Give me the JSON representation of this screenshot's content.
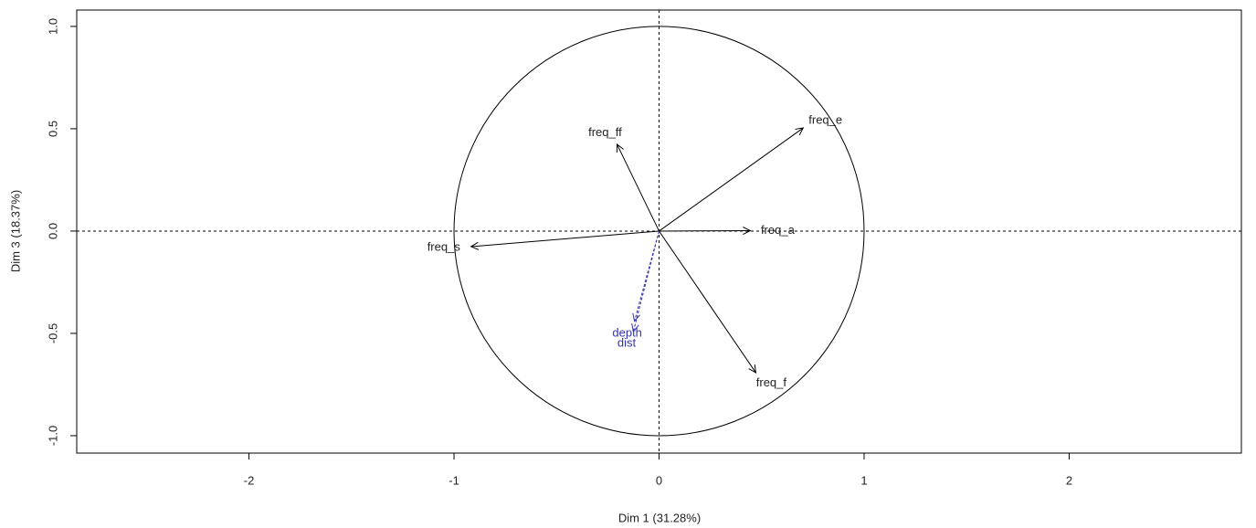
{
  "chart_data": {
    "type": "vector",
    "xlabel": "Dim 1 (31.28%)",
    "ylabel": "Dim 3 (18.37%)",
    "xlim": [
      -2.84,
      2.84
    ],
    "ylim": [
      -1.085,
      1.08
    ],
    "xticks": [
      -2,
      -1,
      0,
      1,
      2
    ],
    "yticks": [
      {
        "value": -1,
        "label": "-1.0"
      },
      {
        "value": -0.5,
        "label": "-0.5"
      },
      {
        "value": 0,
        "label": "0.0"
      },
      {
        "value": 0.5,
        "label": "0.5"
      },
      {
        "value": 1,
        "label": "1.0"
      }
    ],
    "series": [
      {
        "name": "freq_ff",
        "x": -0.205,
        "y": 0.424,
        "color": "#000000",
        "dashed": false
      },
      {
        "name": "freq_e",
        "x": 0.703,
        "y": 0.504,
        "color": "#000000",
        "dashed": false
      },
      {
        "name": "freq_a",
        "x": 0.445,
        "y": 0.002,
        "color": "#000000",
        "dashed": false
      },
      {
        "name": "freq_s",
        "x": -0.917,
        "y": -0.076,
        "color": "#000000",
        "dashed": false
      },
      {
        "name": "freq_f",
        "x": 0.472,
        "y": -0.692,
        "color": "#000000",
        "dashed": false
      },
      {
        "name": "depth",
        "x": -0.12,
        "y": -0.44,
        "color": "#3434b0",
        "dashed": true
      },
      {
        "name": "dist",
        "x": -0.125,
        "y": -0.49,
        "color": "#3434b0",
        "dashed": true
      }
    ]
  }
}
